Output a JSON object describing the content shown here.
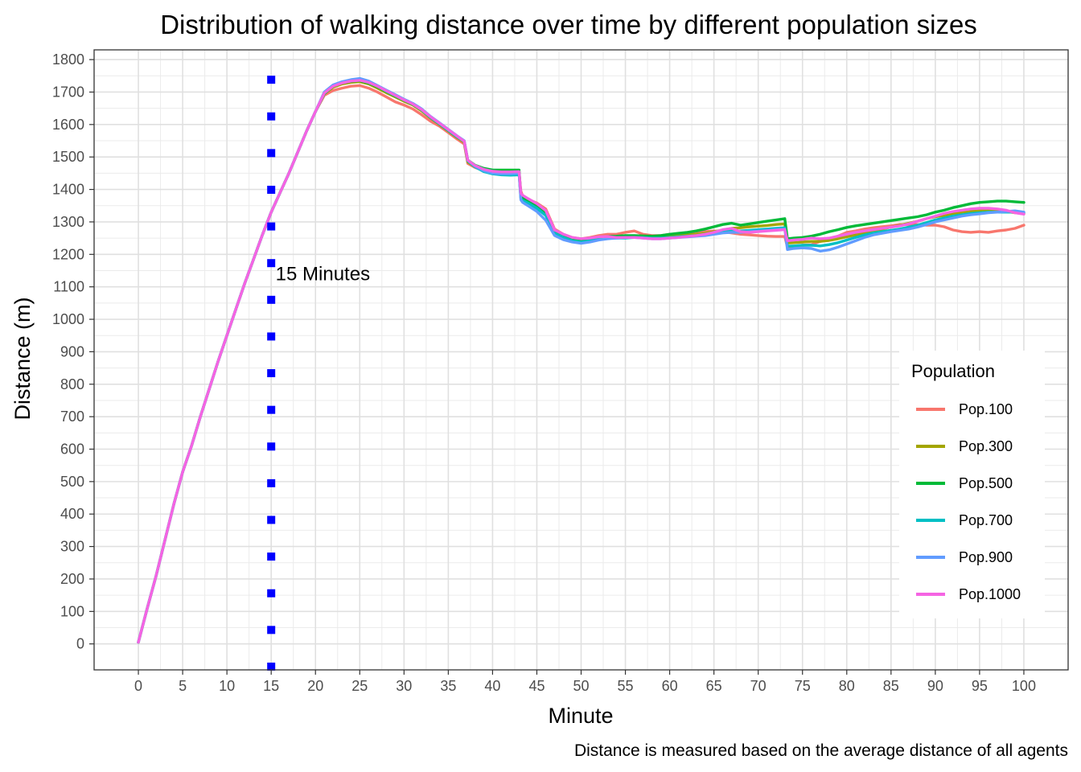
{
  "chart_data": {
    "type": "line",
    "title": "Distribution of walking distance over time by different population sizes",
    "xlabel": "Minute",
    "ylabel": "Distance (m)",
    "caption": "Distance is measured based on the average distance of all agents",
    "xlim": [
      -5,
      105
    ],
    "ylim": [
      -80,
      1830
    ],
    "xticks": [
      0,
      5,
      10,
      15,
      20,
      25,
      30,
      35,
      40,
      45,
      50,
      55,
      60,
      65,
      70,
      75,
      80,
      85,
      90,
      95,
      100
    ],
    "yticks": [
      0,
      100,
      200,
      300,
      400,
      500,
      600,
      700,
      800,
      900,
      1000,
      1100,
      1200,
      1300,
      1400,
      1500,
      1600,
      1700,
      1800
    ],
    "grid": true,
    "legend": {
      "title": "Population",
      "position": "right"
    },
    "annotation": {
      "text": "15 Minutes",
      "x": 15.5,
      "y": 1140
    },
    "vline": {
      "x": 15,
      "style": "dotted",
      "color": "#0000ff",
      "y_from": -70,
      "y_to": 1740,
      "spacing": 113
    },
    "x": [
      0,
      1,
      2,
      3,
      4,
      5,
      6,
      7,
      8,
      9,
      10,
      11,
      12,
      13,
      14,
      15,
      16,
      17,
      18,
      19,
      20,
      21,
      22,
      23,
      24,
      25,
      26,
      27,
      28,
      29,
      30,
      31,
      32,
      33,
      34,
      35,
      36,
      36.8,
      37.2,
      38,
      39,
      40,
      41,
      42,
      43,
      43.2,
      43.4,
      44,
      45,
      46,
      47,
      48,
      49,
      50,
      51,
      52,
      53,
      54,
      55,
      56,
      57,
      58,
      59,
      60,
      61,
      62,
      63,
      64,
      65,
      66,
      67,
      68,
      69,
      70,
      71,
      72,
      73,
      73.3,
      74,
      75,
      76,
      77,
      78,
      79,
      80,
      81,
      82,
      83,
      84,
      85,
      86,
      87,
      88,
      89,
      90,
      91,
      92,
      93,
      94,
      95,
      96,
      97,
      98,
      99,
      100
    ],
    "series": [
      {
        "name": "Pop.100",
        "color": "#f8766d",
        "values": [
          5,
          110,
          210,
          320,
          430,
          530,
          610,
          700,
          785,
          870,
          950,
          1030,
          1110,
          1185,
          1260,
          1330,
          1390,
          1450,
          1515,
          1580,
          1640,
          1690,
          1705,
          1712,
          1718,
          1720,
          1712,
          1700,
          1685,
          1670,
          1660,
          1648,
          1630,
          1610,
          1595,
          1575,
          1555,
          1540,
          1480,
          1468,
          1458,
          1452,
          1452,
          1450,
          1452,
          1395,
          1380,
          1370,
          1358,
          1340,
          1278,
          1262,
          1252,
          1248,
          1252,
          1258,
          1262,
          1262,
          1268,
          1272,
          1262,
          1258,
          1258,
          1262,
          1262,
          1266,
          1268,
          1270,
          1272,
          1270,
          1266,
          1262,
          1260,
          1258,
          1256,
          1255,
          1255,
          1222,
          1225,
          1228,
          1230,
          1240,
          1248,
          1256,
          1268,
          1272,
          1278,
          1282,
          1285,
          1288,
          1292,
          1292,
          1292,
          1290,
          1290,
          1285,
          1275,
          1270,
          1268,
          1270,
          1268,
          1272,
          1275,
          1280,
          1290
        ]
      },
      {
        "name": "Pop.300",
        "color": "#a3a500",
        "values": [
          5,
          110,
          210,
          320,
          430,
          530,
          610,
          700,
          785,
          870,
          950,
          1030,
          1110,
          1185,
          1260,
          1330,
          1390,
          1450,
          1515,
          1580,
          1640,
          1695,
          1715,
          1725,
          1730,
          1732,
          1725,
          1712,
          1698,
          1685,
          1672,
          1660,
          1642,
          1620,
          1600,
          1580,
          1560,
          1545,
          1485,
          1470,
          1460,
          1455,
          1452,
          1450,
          1452,
          1375,
          1365,
          1358,
          1345,
          1325,
          1272,
          1258,
          1248,
          1243,
          1245,
          1250,
          1252,
          1254,
          1256,
          1256,
          1255,
          1254,
          1255,
          1256,
          1258,
          1260,
          1262,
          1265,
          1270,
          1275,
          1280,
          1282,
          1285,
          1287,
          1289,
          1292,
          1294,
          1235,
          1236,
          1238,
          1240,
          1240,
          1243,
          1248,
          1254,
          1260,
          1266,
          1272,
          1278,
          1284,
          1290,
          1296,
          1302,
          1310,
          1316,
          1320,
          1325,
          1330,
          1333,
          1336,
          1338,
          1336,
          1332,
          1328,
          1326
        ]
      },
      {
        "name": "Pop.500",
        "color": "#00ba38",
        "values": [
          5,
          110,
          210,
          320,
          430,
          530,
          610,
          700,
          785,
          870,
          950,
          1030,
          1110,
          1185,
          1260,
          1330,
          1390,
          1450,
          1515,
          1580,
          1640,
          1695,
          1718,
          1728,
          1733,
          1735,
          1728,
          1716,
          1702,
          1688,
          1675,
          1662,
          1645,
          1622,
          1602,
          1582,
          1562,
          1548,
          1490,
          1475,
          1465,
          1460,
          1460,
          1460,
          1460,
          1380,
          1372,
          1365,
          1352,
          1330,
          1272,
          1260,
          1250,
          1245,
          1248,
          1253,
          1255,
          1256,
          1258,
          1258,
          1257,
          1256,
          1258,
          1262,
          1265,
          1268,
          1272,
          1278,
          1285,
          1292,
          1296,
          1290,
          1294,
          1298,
          1302,
          1306,
          1310,
          1248,
          1250,
          1252,
          1256,
          1262,
          1270,
          1276,
          1283,
          1288,
          1292,
          1296,
          1300,
          1304,
          1308,
          1312,
          1316,
          1322,
          1330,
          1336,
          1344,
          1350,
          1356,
          1360,
          1362,
          1364,
          1364,
          1362,
          1360
        ]
      },
      {
        "name": "Pop.700",
        "color": "#00bfc4",
        "values": [
          5,
          110,
          210,
          320,
          430,
          530,
          610,
          700,
          785,
          870,
          950,
          1030,
          1110,
          1185,
          1260,
          1330,
          1390,
          1450,
          1515,
          1580,
          1640,
          1697,
          1720,
          1730,
          1736,
          1738,
          1730,
          1718,
          1703,
          1689,
          1676,
          1663,
          1645,
          1622,
          1602,
          1582,
          1562,
          1548,
          1488,
          1470,
          1455,
          1448,
          1445,
          1444,
          1445,
          1372,
          1366,
          1358,
          1342,
          1320,
          1265,
          1252,
          1242,
          1238,
          1242,
          1248,
          1250,
          1250,
          1250,
          1252,
          1252,
          1250,
          1250,
          1252,
          1254,
          1256,
          1258,
          1262,
          1266,
          1270,
          1272,
          1272,
          1274,
          1276,
          1278,
          1280,
          1282,
          1225,
          1226,
          1228,
          1228,
          1226,
          1230,
          1236,
          1244,
          1252,
          1260,
          1266,
          1270,
          1274,
          1278,
          1284,
          1290,
          1298,
          1306,
          1312,
          1318,
          1322,
          1326,
          1328,
          1330,
          1330,
          1330,
          1330,
          1328
        ]
      },
      {
        "name": "Pop.900",
        "color": "#619cff",
        "values": [
          5,
          110,
          210,
          320,
          430,
          530,
          610,
          700,
          785,
          870,
          950,
          1030,
          1110,
          1185,
          1260,
          1330,
          1390,
          1450,
          1515,
          1580,
          1640,
          1700,
          1722,
          1732,
          1738,
          1742,
          1734,
          1720,
          1706,
          1692,
          1678,
          1665,
          1648,
          1625,
          1605,
          1585,
          1565,
          1550,
          1490,
          1472,
          1458,
          1450,
          1448,
          1448,
          1450,
          1368,
          1360,
          1350,
          1332,
          1305,
          1258,
          1245,
          1238,
          1234,
          1238,
          1244,
          1248,
          1250,
          1252,
          1252,
          1250,
          1248,
          1248,
          1250,
          1252,
          1254,
          1256,
          1258,
          1262,
          1266,
          1268,
          1268,
          1270,
          1272,
          1274,
          1276,
          1278,
          1215,
          1218,
          1220,
          1218,
          1210,
          1214,
          1222,
          1232,
          1242,
          1252,
          1260,
          1265,
          1270,
          1274,
          1278,
          1284,
          1292,
          1300,
          1306,
          1312,
          1318,
          1322,
          1325,
          1328,
          1330,
          1332,
          1334,
          1330
        ]
      },
      {
        "name": "Pop.1000",
        "color": "#f564e3",
        "values": [
          5,
          110,
          210,
          320,
          430,
          530,
          610,
          700,
          785,
          870,
          950,
          1030,
          1110,
          1185,
          1260,
          1330,
          1390,
          1450,
          1515,
          1580,
          1640,
          1697,
          1718,
          1728,
          1734,
          1736,
          1730,
          1718,
          1704,
          1690,
          1676,
          1663,
          1646,
          1624,
          1604,
          1584,
          1564,
          1548,
          1490,
          1474,
          1462,
          1456,
          1454,
          1454,
          1455,
          1388,
          1382,
          1372,
          1356,
          1335,
          1275,
          1262,
          1252,
          1248,
          1250,
          1254,
          1255,
          1252,
          1252,
          1252,
          1250,
          1248,
          1248,
          1250,
          1252,
          1255,
          1258,
          1262,
          1268,
          1276,
          1280,
          1270,
          1268,
          1270,
          1272,
          1274,
          1276,
          1242,
          1244,
          1246,
          1250,
          1248,
          1250,
          1256,
          1262,
          1268,
          1272,
          1276,
          1280,
          1284,
          1288,
          1294,
          1302,
          1310,
          1318,
          1326,
          1332,
          1336,
          1340,
          1342,
          1342,
          1340,
          1336,
          1328,
          1324
        ]
      }
    ]
  }
}
